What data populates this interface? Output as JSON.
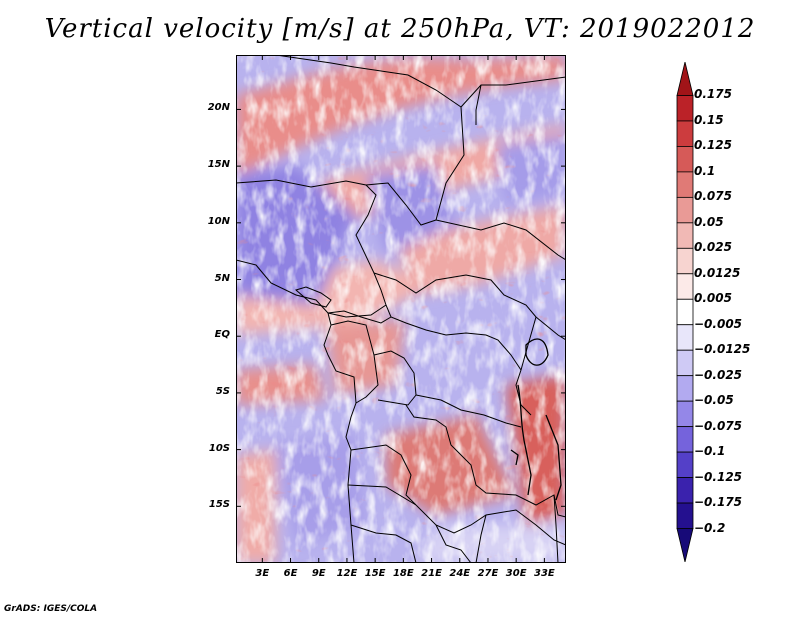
{
  "title": "Vertical velocity [m/s] at 250hPa, VT: 2019022012",
  "credit": "GrADS: IGES/COLA",
  "map": {
    "lat_ticks": [
      {
        "label": "20N",
        "lat": 20
      },
      {
        "label": "15N",
        "lat": 15
      },
      {
        "label": "10N",
        "lat": 10
      },
      {
        "label": "5N",
        "lat": 5
      },
      {
        "label": "EQ",
        "lat": 0
      },
      {
        "label": "5S",
        "lat": -5
      },
      {
        "label": "10S",
        "lat": -10
      },
      {
        "label": "15S",
        "lat": -15
      }
    ],
    "lon_ticks": [
      {
        "label": "3E",
        "lon": 3
      },
      {
        "label": "6E",
        "lon": 6
      },
      {
        "label": "9E",
        "lon": 9
      },
      {
        "label": "12E",
        "lon": 12
      },
      {
        "label": "15E",
        "lon": 15
      },
      {
        "label": "18E",
        "lon": 18
      },
      {
        "label": "21E",
        "lon": 21
      },
      {
        "label": "24E",
        "lon": 24
      },
      {
        "label": "27E",
        "lon": 27
      },
      {
        "label": "30E",
        "lon": 30
      },
      {
        "label": "33E",
        "lon": 33
      }
    ],
    "lon_range": [
      0.2,
      35.3
    ],
    "lat_range": [
      -20,
      24.8
    ]
  },
  "colorbar": {
    "levels": [
      "0.175",
      "0.15",
      "0.125",
      "0.1",
      "0.075",
      "0.05",
      "0.025",
      "0.0125",
      "0.005",
      "−0.005",
      "−0.0125",
      "−0.025",
      "−0.05",
      "−0.075",
      "−0.1",
      "−0.125",
      "−0.175",
      "−0.2"
    ],
    "colors": [
      "#a11418",
      "#bb2228",
      "#cc3c3e",
      "#d65a58",
      "#e07a76",
      "#e99a96",
      "#f1b9b5",
      "#f7d4d0",
      "#fceae8",
      "#ffffff",
      "#e8e6fa",
      "#cfcaf5",
      "#b2aaf0",
      "#9487e8",
      "#7563dc",
      "#5440c8",
      "#3a22ad",
      "#24108f",
      "#170a78"
    ]
  }
}
